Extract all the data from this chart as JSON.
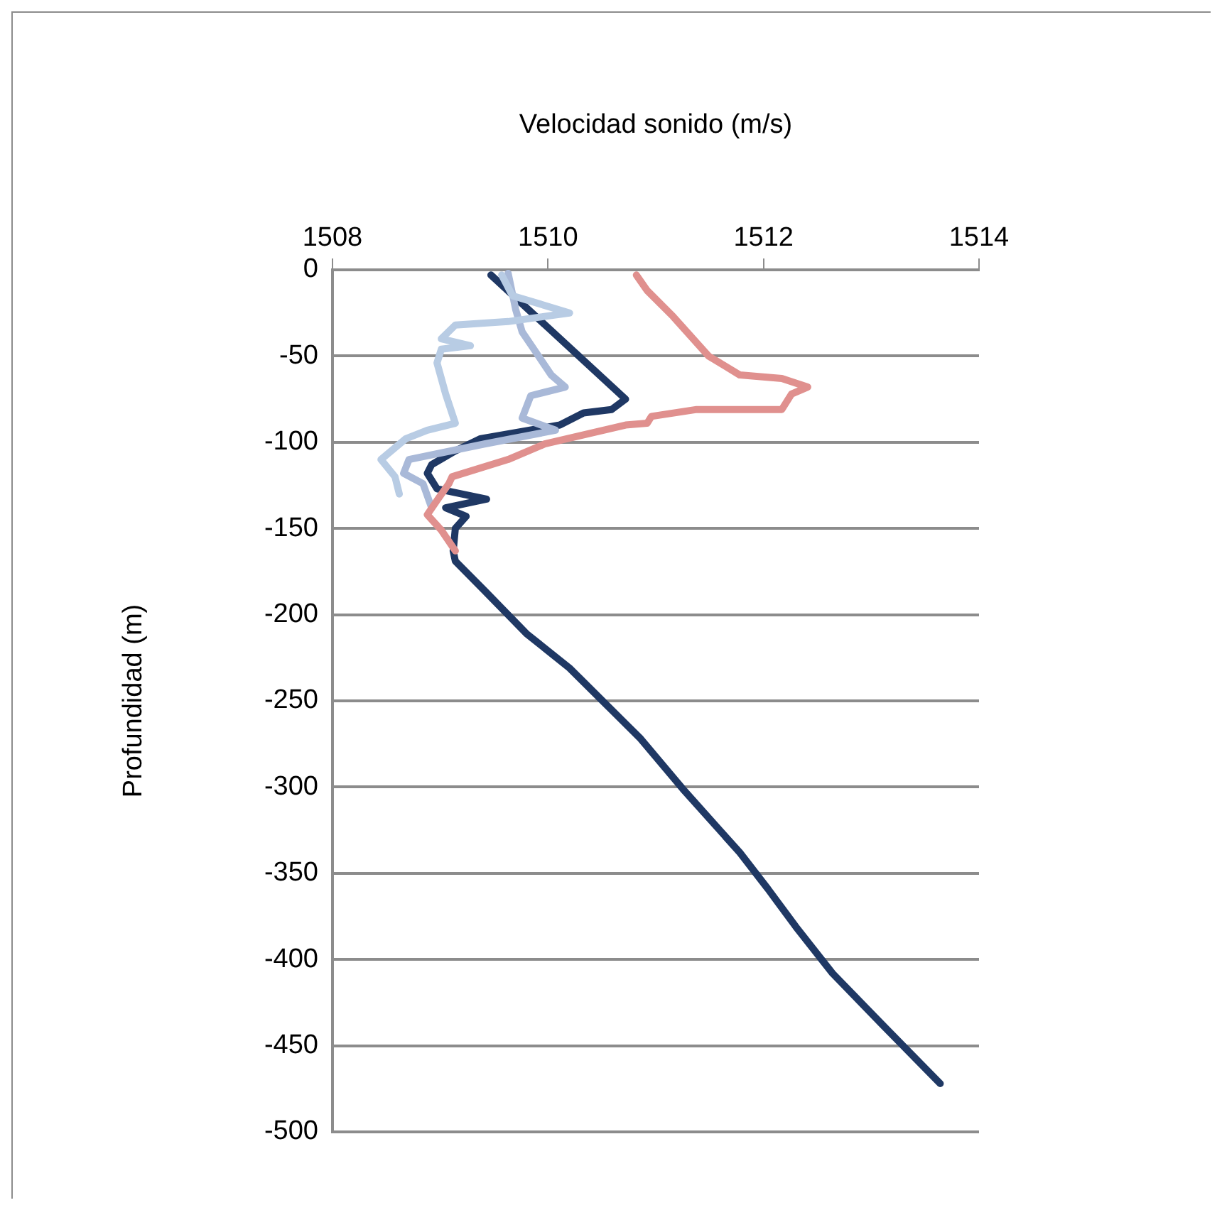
{
  "chart_data": {
    "type": "line",
    "xlabel": "Velocidad sonido (m/s)",
    "ylabel": "Profundidad (m)",
    "xlim": [
      1508,
      1514
    ],
    "xticks": [
      1508,
      1510,
      1512,
      1514
    ],
    "ylim": [
      -500,
      0
    ],
    "yticks": [
      0,
      -50,
      -100,
      -150,
      -200,
      -250,
      -300,
      -350,
      -400,
      -450,
      -500
    ],
    "grid": "y",
    "legend": false,
    "marker": "none",
    "line_style": "solid",
    "series": [
      {
        "color": "#e0908e",
        "x": [
          1510.82,
          1510.92,
          1511.16,
          1511.49,
          1511.78,
          1512.17,
          1512.41,
          1512.26,
          1512.17,
          1511.38,
          1510.96,
          1510.92,
          1510.72,
          1509.97,
          1509.63,
          1509.11,
          1509.08,
          1508.99,
          1508.88,
          1509.01,
          1509.14
        ],
        "values": [
          -3,
          -12,
          -27,
          -50,
          -61,
          -63,
          -68,
          -72,
          -81,
          -81,
          -85,
          -89,
          -90,
          -101,
          -110,
          -120,
          -124,
          -132,
          -142,
          -151,
          -163
        ]
      },
      {
        "color": "#b8cce4",
        "x": [
          1509.57,
          1509.67,
          1510.2,
          1509.63,
          1509.14,
          1509.01,
          1509.28,
          1509.01,
          1508.97,
          1509.05,
          1509.14,
          1508.88,
          1508.68,
          1508.45,
          1508.58,
          1508.62
        ],
        "values": [
          -3,
          -15,
          -25,
          -30,
          -32,
          -40,
          -44,
          -46,
          -54,
          -72,
          -89,
          -93,
          -98,
          -110,
          -120,
          -130
        ]
      },
      {
        "color": "#a9b9d8",
        "x": [
          1509.63,
          1509.7,
          1509.76,
          1509.89,
          1510.03,
          1510.16,
          1509.84,
          1509.76,
          1510.07,
          1509.41,
          1508.71,
          1508.66,
          1508.84,
          1508.92
        ],
        "values": [
          -2,
          -23,
          -36,
          -48,
          -61,
          -68,
          -73,
          -86,
          -93,
          -101,
          -110,
          -118,
          -124,
          -138
        ]
      },
      {
        "color": "#1f3864",
        "x": [
          1509.47,
          1510.72,
          1510.59,
          1510.33,
          1510.11,
          1509.37,
          1509.14,
          1508.92,
          1508.88,
          1508.97,
          1509.43,
          1509.05,
          1509.24,
          1509.14,
          1509.12,
          1509.14,
          1509.41,
          1509.8,
          1510.2,
          1510.86,
          1511.25,
          1511.78,
          1512.04,
          1512.3,
          1512.64,
          1513.09,
          1513.64
        ],
        "values": [
          -3,
          -75,
          -81,
          -83,
          -90,
          -98,
          -105,
          -113,
          -118,
          -127,
          -133,
          -138,
          -143,
          -150,
          -163,
          -169,
          -186,
          -211,
          -231,
          -272,
          -301,
          -338,
          -359,
          -381,
          -408,
          -437,
          -472
        ]
      }
    ]
  }
}
